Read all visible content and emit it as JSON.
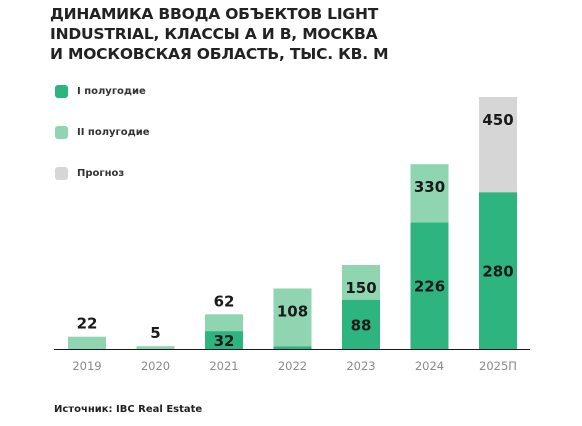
{
  "title_lines": [
    "ДИНАМИКА ВВОДА ОБЪЕКТОВ LIGHT",
    "INDUSTRIAL, КЛАССЫ А И В, МОСКВА",
    "И МОСКОВСКАЯ ОБЛАСТЬ, ТЫС. КВ. М"
  ],
  "source": "Источник: IBC Real Estate",
  "colors": {
    "first_half": "#2db47f",
    "second_half": "#8fd5b2",
    "forecast": "#d6d6d6",
    "axis": "#1a1a1a",
    "tick_text": "#8a8a8a"
  },
  "chart_data": {
    "type": "bar",
    "stacked": true,
    "categories": [
      "2019",
      "2020",
      "2021",
      "2022",
      "2023",
      "2024",
      "2025П"
    ],
    "series": [
      {
        "name": "I полугодие",
        "color_key": "first_half",
        "values": [
          0,
          0,
          32,
          5,
          88,
          226,
          280
        ]
      },
      {
        "name": "II полугодие",
        "color_key": "second_half",
        "values": [
          22,
          5,
          30,
          103,
          62,
          104,
          0
        ]
      },
      {
        "name": "Прогноз",
        "color_key": "forecast",
        "values": [
          0,
          0,
          0,
          0,
          0,
          0,
          170
        ]
      }
    ],
    "data_labels": [
      {
        "category": "2019",
        "text": "22",
        "position": "above"
      },
      {
        "category": "2020",
        "text": "5",
        "position": "above"
      },
      {
        "category": "2021",
        "text": "62",
        "position": "above"
      },
      {
        "category": "2021",
        "text": "32",
        "position": "inside-bottom"
      },
      {
        "category": "2022",
        "text": "108",
        "position": "inside-top"
      },
      {
        "category": "2023",
        "text": "150",
        "position": "inside-top"
      },
      {
        "category": "2023",
        "text": "88",
        "position": "inside-bottom"
      },
      {
        "category": "2024",
        "text": "330",
        "position": "inside-top"
      },
      {
        "category": "2024",
        "text": "226",
        "position": "inside-bottom"
      },
      {
        "category": "2025П",
        "text": "450",
        "position": "inside-top"
      },
      {
        "category": "2025П",
        "text": "280",
        "position": "inside-bottom"
      }
    ],
    "ylim": [
      0,
      450
    ],
    "grid": false,
    "legend_position": "top-left"
  }
}
